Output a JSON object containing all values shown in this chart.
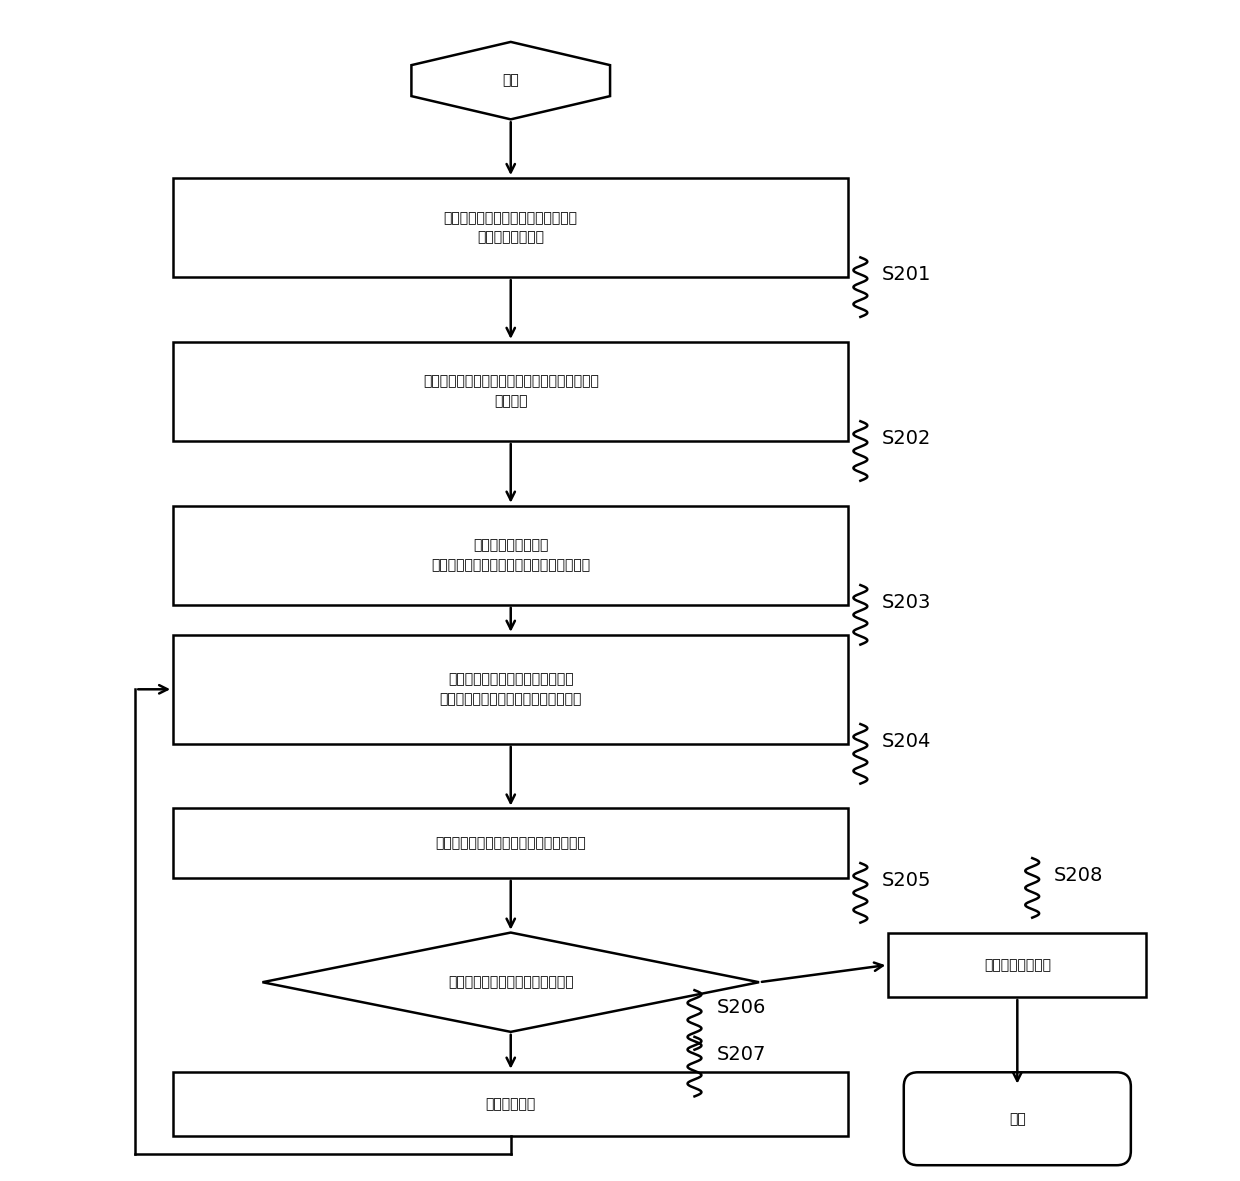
{
  "bg_color": "#ffffff",
  "line_color": "#000000",
  "nodes": {
    "start_text": "开始",
    "s201_text": "利用最佳波段的微波测量木材样品，\n获得多个介电常数",
    "s202_text": "采用传统称重法获取多个木材样品的密度，作为\n已知密度",
    "s203_text": "利用统计学方法获取\n木材密度与多频率介电常数的关系模型参数",
    "s204_text": "对一木材样品进行微波测量，根据\n关系模型及其模型参数，获得测量密度",
    "s205_text": "比较所述木材样品的已知密度和测量密度",
    "s206_text": "比较结果是否符合预定误差精度？",
    "s207_text": "调整模型参数",
    "s208_text": "保存所述模型参数",
    "end_text": "结束"
  },
  "labels": [
    "S201",
    "S202",
    "S203",
    "S204",
    "S205",
    "S206",
    "S207",
    "S208"
  ],
  "lw": 1.8,
  "arrow_lw": 1.8,
  "font_size_main": 15,
  "font_size_start": 18,
  "font_size_label": 14
}
